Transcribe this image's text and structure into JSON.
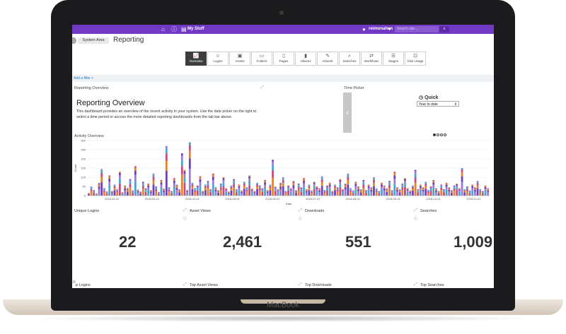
{
  "device": {
    "brand": "MacBook"
  },
  "topbar": {
    "user": "reimonahen",
    "user_caret": "▾",
    "my_stuff": "My Stuff",
    "search_placeholder": "Search site...",
    "search_icon": "search-icon"
  },
  "breadcrumb": {
    "system": "System Area",
    "title": "Reporting"
  },
  "tabs": [
    {
      "label": "Overview",
      "icon": "chart-icon"
    },
    {
      "label": "Logins",
      "icon": "users-icon"
    },
    {
      "label": "Assets",
      "icon": "image-icon"
    },
    {
      "label": "Folders",
      "icon": "folder-icon"
    },
    {
      "label": "Pages",
      "icon": "page-icon"
    },
    {
      "label": "Albums",
      "icon": "album-icon"
    },
    {
      "label": "Artwork",
      "icon": "artwork-icon"
    },
    {
      "label": "Searches",
      "icon": "search-icon"
    },
    {
      "label": "Workflows",
      "icon": "workflow-icon"
    },
    {
      "label": "Stages",
      "icon": "stages-icon"
    },
    {
      "label": "Disk Usage",
      "icon": "disk-icon"
    }
  ],
  "filter": {
    "add_label": "Add a filter +"
  },
  "overview": {
    "panel_label": "Reporting Overview",
    "title": "Reporting Overview",
    "description": "This dashboard provides an overview of the recent activity in your system. Use the date picker on the right to select a time period or access the more detailed reporting dashboards from the tab bar above."
  },
  "time_picker": {
    "panel_label": "Time Picker",
    "quick_label": "Quick",
    "selected": "Year to date",
    "prev": "‹"
  },
  "activity": {
    "panel_label": "Activity Overview"
  },
  "chart_data": {
    "type": "bar",
    "title": "Activity Overview",
    "xlabel": "Date",
    "ylabel": "Count",
    "ylim": [
      0,
      300
    ],
    "yticks": [
      0,
      50,
      100,
      150,
      200,
      250,
      300
    ],
    "xticks": [
      "2018-02-01",
      "2018-03-01",
      "2018-04-01",
      "2018-05-01",
      "2018-06-01",
      "2018-07-01",
      "2018-08-01",
      "2018-09-01",
      "2018-10-01",
      "2018-11-01"
    ],
    "stacked": true,
    "series_colors": [
      "#6a3fb8",
      "#e0822f",
      "#c94a7a",
      "#4aa3c9",
      "#9a7ad6"
    ],
    "values": [
      15,
      48,
      30,
      12,
      70,
      145,
      40,
      22,
      110,
      25,
      60,
      35,
      130,
      18,
      55,
      42,
      90,
      28,
      160,
      33,
      22,
      75,
      40,
      65,
      30,
      120,
      50,
      20,
      85,
      38,
      270,
      45,
      25,
      95,
      60,
      35,
      230,
      140,
      30,
      290,
      70,
      40,
      55,
      105,
      25,
      60,
      80,
      35,
      120,
      45,
      30,
      65,
      100,
      40,
      22,
      55,
      90,
      35,
      60,
      28,
      75,
      45,
      110,
      38,
      25,
      70,
      55,
      40,
      85,
      30,
      60,
      195,
      48,
      35,
      70,
      100,
      25,
      55,
      40,
      80,
      30,
      65,
      45,
      95,
      35,
      60,
      28,
      75,
      50,
      40,
      105,
      30,
      55,
      70,
      25,
      60,
      45,
      90,
      35,
      65,
      120,
      40,
      28,
      75,
      50,
      35,
      85,
      30,
      60,
      45,
      100,
      38,
      25,
      70,
      55,
      40,
      80,
      30,
      130,
      45,
      35,
      65,
      95,
      40,
      28,
      55,
      140,
      35,
      60,
      45,
      75,
      30,
      50,
      85,
      40,
      25,
      60,
      35,
      70,
      45,
      30,
      55,
      65,
      40,
      150,
      35,
      50,
      28,
      60,
      45,
      80,
      35,
      25,
      55,
      40
    ]
  },
  "metrics": [
    {
      "label": "Unique Logins",
      "value": "22"
    },
    {
      "label": "Asset Views",
      "value": "2,461"
    },
    {
      "label": "Downloads",
      "value": "551"
    },
    {
      "label": "Searches",
      "value": "1,009"
    }
  ],
  "bottom_labels": [
    "p Logins",
    "Top Asset Views",
    "Top Downloads",
    "Top Searches"
  ]
}
